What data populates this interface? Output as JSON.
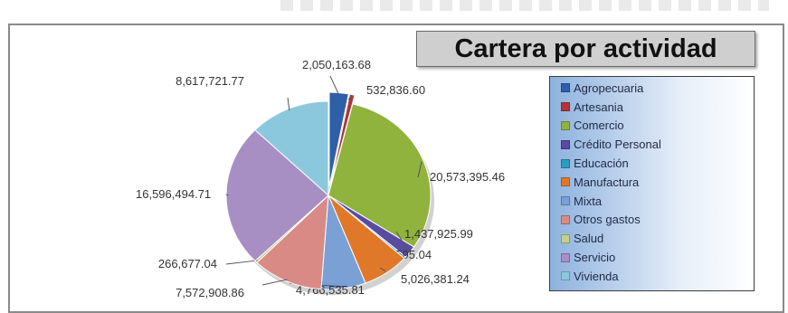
{
  "chart_data": {
    "type": "pie",
    "title": "Cartera por actividad",
    "legend_position": "right",
    "categories": [
      "Agropecuaria",
      "Artesania",
      "Comercio",
      "Crédito Personal",
      "Educación",
      "Manufactura",
      "Mixta",
      "Otros gastos",
      "Salud",
      "Servicio",
      "Vivienda"
    ],
    "values": [
      2050163.68,
      532836.6,
      20573395.46,
      1437925.99,
      203595.04,
      5026381.24,
      4766535.81,
      7572908.86,
      266677.04,
      16596494.71,
      8617721.77
    ],
    "value_labels": [
      "2,050,163.68",
      "532,836.60",
      "20,573,395.46",
      "1,437,925.99",
      "203,595.04",
      "5,026,381.24",
      "4,766,535.81",
      "7,572,908.86",
      "266,677.04",
      "16,596,494.71",
      "8,617,721.77"
    ],
    "colors": [
      "#2f5fa8",
      "#b0343a",
      "#8fb33c",
      "#5a4ba2",
      "#2b9dbd",
      "#e0782a",
      "#7aa0d6",
      "#d98a84",
      "#c2d08a",
      "#a78fc4",
      "#8cc8dd"
    ]
  }
}
